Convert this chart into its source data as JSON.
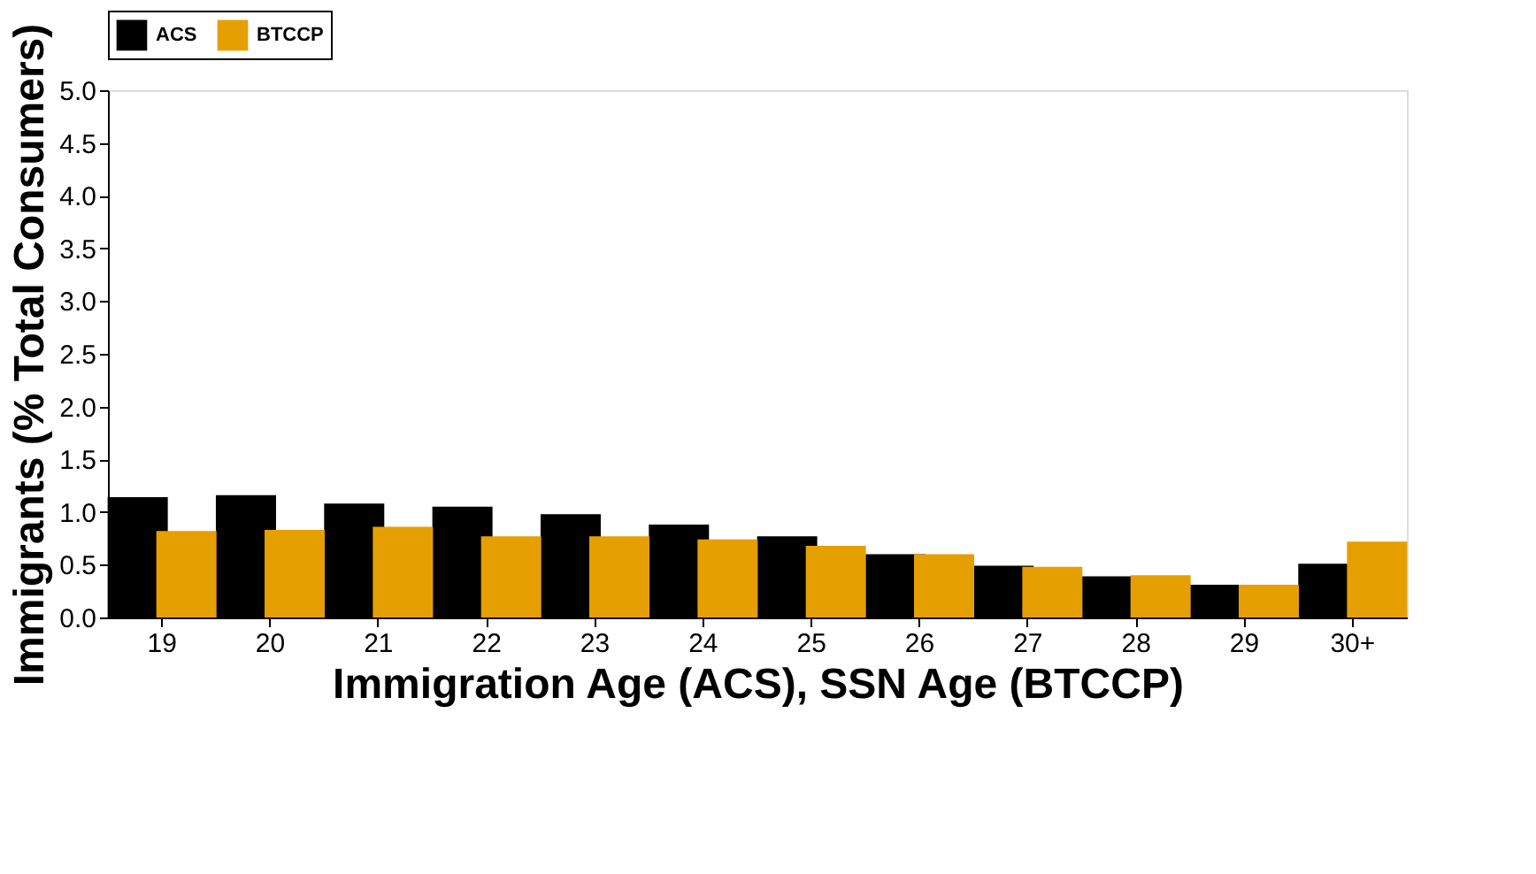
{
  "chart_data": {
    "type": "bar",
    "xlabel": "Immigration Age (ACS), SSN Age (BTCCP)",
    "ylabel": "Immigrants (% Total Consumers)",
    "categories": [
      "19",
      "20",
      "21",
      "22",
      "23",
      "24",
      "25",
      "26",
      "27",
      "28",
      "29",
      "30+"
    ],
    "series": [
      {
        "name": "ACS",
        "color": "#000000",
        "values": [
          1.14,
          1.16,
          1.08,
          1.05,
          0.98,
          0.88,
          0.77,
          0.6,
          0.49,
          0.39,
          0.31,
          0.51
        ]
      },
      {
        "name": "BTCCP",
        "color": "#e69f00",
        "values": [
          0.82,
          0.83,
          0.86,
          0.77,
          0.77,
          0.74,
          0.68,
          0.6,
          0.48,
          0.4,
          0.31,
          0.72
        ]
      }
    ],
    "ylim": [
      0,
      5
    ],
    "yticks": [
      {
        "value": 0,
        "label": "0.0"
      },
      {
        "value": 0.5,
        "label": "0.5"
      },
      {
        "value": 1,
        "label": "1.0"
      },
      {
        "value": 1.5,
        "label": "1.5"
      },
      {
        "value": 2,
        "label": "2.0"
      },
      {
        "value": 2.5,
        "label": "2.5"
      },
      {
        "value": 3,
        "label": "3.0"
      },
      {
        "value": 3.5,
        "label": "3.5"
      },
      {
        "value": 4,
        "label": "4.0"
      },
      {
        "value": 4.5,
        "label": "4.5"
      },
      {
        "value": 5,
        "label": "5.0"
      }
    ],
    "grid": false,
    "legend": "top"
  }
}
